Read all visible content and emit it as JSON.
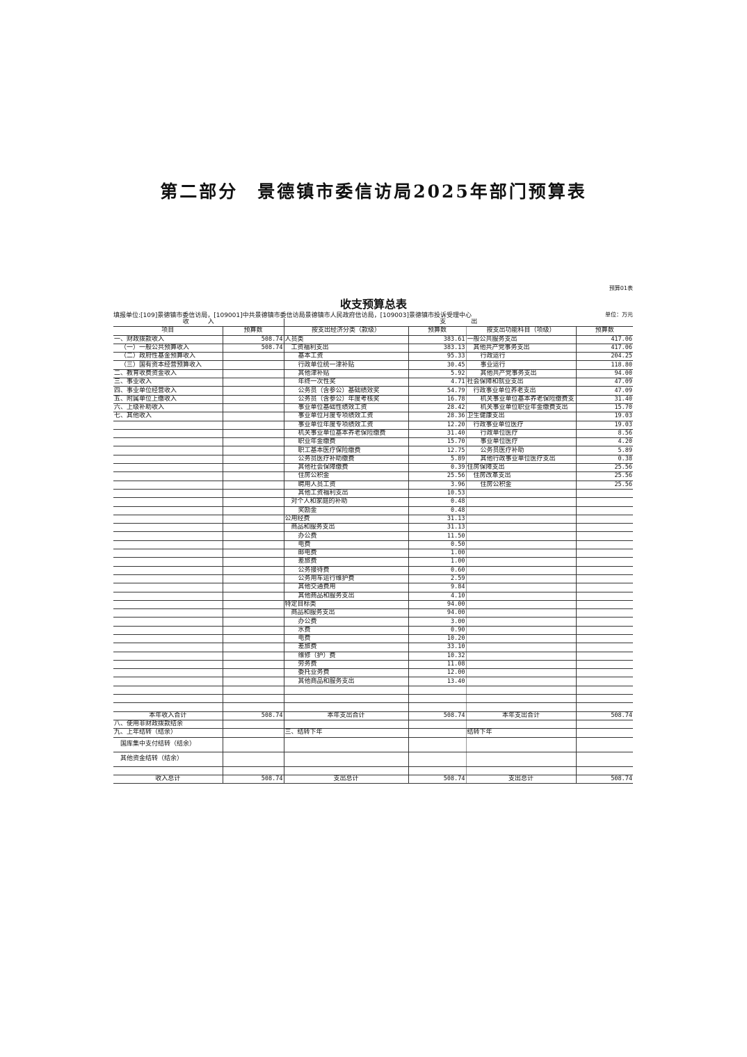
{
  "page_title": "第二部分　景德镇市委信访局2025年部门预算表",
  "form_no": "预算01表",
  "table_title": "收支预算总表",
  "filing_unit": "填报单位:[109]景德镇市委信访局，[109001]中共景德镇市委信访局景德镇市人民政府信访局，[109003]景德镇市投诉受理中心",
  "unit": "单位：万元",
  "header": {
    "income": "收　　　入",
    "expense": "支　　　　出",
    "cols": [
      "项目",
      "预算数",
      "按支出经济分类（款级）",
      "预算数",
      "按支出功能科目（项级）",
      "预算数"
    ]
  },
  "rows": [
    {
      "c": [
        "一、财政拨款收入",
        "508.74",
        "人员类",
        "383.61",
        "一般公共服务支出",
        "417.06"
      ],
      "lv": [
        0,
        0,
        0
      ]
    },
    {
      "c": [
        "（一）一般公共预算收入",
        "508.74",
        "工资福利支出",
        "383.13",
        "其他共产党事务支出",
        "417.06"
      ],
      "lv": [
        1,
        1,
        1
      ]
    },
    {
      "c": [
        "（二）政府性基金预算收入",
        "",
        "基本工资",
        "95.33",
        "行政运行",
        "204.25"
      ],
      "lv": [
        1,
        2,
        2
      ]
    },
    {
      "c": [
        "（三）国有资本经营预算收入",
        "",
        "行政单位统一津补贴",
        "30.45",
        "事业运行",
        "118.80"
      ],
      "lv": [
        1,
        2,
        2
      ]
    },
    {
      "c": [
        "二、教育收费资金收入",
        "",
        "其他津补贴",
        "5.92",
        "其他共产党事务支出",
        "94.00"
      ],
      "lv": [
        0,
        2,
        2
      ]
    },
    {
      "c": [
        "三、事业收入",
        "",
        "年终一次性奖",
        "4.71",
        "社会保障和就业支出",
        "47.09"
      ],
      "lv": [
        0,
        2,
        0
      ]
    },
    {
      "c": [
        "四、事业单位经营收入",
        "",
        "公务员（含参公）基础绩效奖",
        "54.79",
        "行政事业单位养老支出",
        "47.09"
      ],
      "lv": [
        0,
        2,
        1
      ]
    },
    {
      "c": [
        "五、附属单位上缴收入",
        "",
        "公务员（含参公）年度考核奖",
        "16.78",
        "机关事业单位基本养老保险缴费支",
        "31.40"
      ],
      "lv": [
        0,
        2,
        2
      ]
    },
    {
      "c": [
        "六、上级补助收入",
        "",
        "事业单位基础性绩效工资",
        "28.42",
        "机关事业单位职业年金缴费支出",
        "15.70"
      ],
      "lv": [
        0,
        2,
        2
      ]
    },
    {
      "c": [
        "七、其他收入",
        "",
        "事业单位月度专项绩效工资",
        "28.36",
        "卫生健康支出",
        "19.03"
      ],
      "lv": [
        0,
        2,
        0
      ]
    },
    {
      "c": [
        "",
        "",
        "事业单位年度专项绩效工资",
        "12.20",
        "行政事业单位医疗",
        "19.03"
      ],
      "lv": [
        0,
        2,
        1
      ]
    },
    {
      "c": [
        "",
        "",
        "机关事业单位基本养老保险缴费",
        "31.40",
        "行政单位医疗",
        "8.56"
      ],
      "lv": [
        0,
        2,
        2
      ]
    },
    {
      "c": [
        "",
        "",
        "职业年金缴费",
        "15.70",
        "事业单位医疗",
        "4.20"
      ],
      "lv": [
        0,
        2,
        2
      ]
    },
    {
      "c": [
        "",
        "",
        "职工基本医疗保险缴费",
        "12.75",
        "公务员医疗补助",
        "5.89"
      ],
      "lv": [
        0,
        2,
        2
      ]
    },
    {
      "c": [
        "",
        "",
        "公务员医疗补助缴费",
        "5.89",
        "其他行政事业单位医疗支出",
        "0.38"
      ],
      "lv": [
        0,
        2,
        2
      ]
    },
    {
      "c": [
        "",
        "",
        "其他社会保障缴费",
        "0.39",
        "住房保障支出",
        "25.56"
      ],
      "lv": [
        0,
        2,
        0
      ]
    },
    {
      "c": [
        "",
        "",
        "住房公积金",
        "25.56",
        "住房改革支出",
        "25.56"
      ],
      "lv": [
        0,
        2,
        1
      ]
    },
    {
      "c": [
        "",
        "",
        "聘用人员工资",
        "3.96",
        "住房公积金",
        "25.56"
      ],
      "lv": [
        0,
        2,
        2
      ]
    },
    {
      "c": [
        "",
        "",
        "其他工资福利支出",
        "10.53",
        "",
        ""
      ],
      "lv": [
        0,
        2,
        0
      ]
    },
    {
      "c": [
        "",
        "",
        "对个人和家庭的补助",
        "0.48",
        "",
        ""
      ],
      "lv": [
        0,
        1,
        0
      ]
    },
    {
      "c": [
        "",
        "",
        "奖励金",
        "0.48",
        "",
        ""
      ],
      "lv": [
        0,
        2,
        0
      ]
    },
    {
      "c": [
        "",
        "",
        "公用经费",
        "31.13",
        "",
        ""
      ],
      "lv": [
        0,
        0,
        0
      ]
    },
    {
      "c": [
        "",
        "",
        "商品和服务支出",
        "31.13",
        "",
        ""
      ],
      "lv": [
        0,
        1,
        0
      ]
    },
    {
      "c": [
        "",
        "",
        "办公费",
        "11.50",
        "",
        ""
      ],
      "lv": [
        0,
        2,
        0
      ]
    },
    {
      "c": [
        "",
        "",
        "电费",
        "0.50",
        "",
        ""
      ],
      "lv": [
        0,
        2,
        0
      ]
    },
    {
      "c": [
        "",
        "",
        "邮电费",
        "1.00",
        "",
        ""
      ],
      "lv": [
        0,
        2,
        0
      ]
    },
    {
      "c": [
        "",
        "",
        "差旅费",
        "1.00",
        "",
        ""
      ],
      "lv": [
        0,
        2,
        0
      ]
    },
    {
      "c": [
        "",
        "",
        "公务接待费",
        "0.60",
        "",
        ""
      ],
      "lv": [
        0,
        2,
        0
      ]
    },
    {
      "c": [
        "",
        "",
        "公务用车运行维护费",
        "2.59",
        "",
        ""
      ],
      "lv": [
        0,
        2,
        0
      ]
    },
    {
      "c": [
        "",
        "",
        "其他交通费用",
        "9.84",
        "",
        ""
      ],
      "lv": [
        0,
        2,
        0
      ]
    },
    {
      "c": [
        "",
        "",
        "其他商品和服务支出",
        "4.10",
        "",
        ""
      ],
      "lv": [
        0,
        2,
        0
      ]
    },
    {
      "c": [
        "",
        "",
        "特定目标类",
        "94.00",
        "",
        ""
      ],
      "lv": [
        0,
        0,
        0
      ]
    },
    {
      "c": [
        "",
        "",
        "商品和服务支出",
        "94.00",
        "",
        ""
      ],
      "lv": [
        0,
        1,
        0
      ]
    },
    {
      "c": [
        "",
        "",
        "办公费",
        "3.00",
        "",
        ""
      ],
      "lv": [
        0,
        2,
        0
      ]
    },
    {
      "c": [
        "",
        "",
        "水费",
        "0.90",
        "",
        ""
      ],
      "lv": [
        0,
        2,
        0
      ]
    },
    {
      "c": [
        "",
        "",
        "电费",
        "10.20",
        "",
        ""
      ],
      "lv": [
        0,
        2,
        0
      ]
    },
    {
      "c": [
        "",
        "",
        "差旅费",
        "33.10",
        "",
        ""
      ],
      "lv": [
        0,
        2,
        0
      ]
    },
    {
      "c": [
        "",
        "",
        "维修（护）费",
        "10.32",
        "",
        ""
      ],
      "lv": [
        0,
        2,
        0
      ]
    },
    {
      "c": [
        "",
        "",
        "劳务费",
        "11.08",
        "",
        ""
      ],
      "lv": [
        0,
        2,
        0
      ]
    },
    {
      "c": [
        "",
        "",
        "委托业务费",
        "12.00",
        "",
        ""
      ],
      "lv": [
        0,
        2,
        0
      ]
    },
    {
      "c": [
        "",
        "",
        "其他商品和服务支出",
        "13.40",
        "",
        ""
      ],
      "lv": [
        0,
        2,
        0
      ]
    },
    {
      "c": [
        "",
        "",
        "",
        "",
        "",
        ""
      ],
      "lv": [
        0,
        0,
        0
      ]
    },
    {
      "c": [
        "",
        "",
        "",
        "",
        "",
        ""
      ],
      "lv": [
        0,
        0,
        0
      ]
    },
    {
      "c": [
        "",
        "",
        "",
        "",
        "",
        ""
      ],
      "lv": [
        0,
        0,
        0
      ]
    }
  ],
  "footer": [
    {
      "c": [
        "本年收入合计",
        "508.74",
        "本年支出合计",
        "508.74",
        "本年支出合计",
        "508.74"
      ],
      "center": true
    },
    {
      "c": [
        "八、使用非财政拨款结余",
        "",
        "",
        "",
        "",
        ""
      ]
    },
    {
      "c": [
        "九、上年结转（结余）",
        "",
        "三、结转下年",
        "",
        "结转下年",
        ""
      ]
    },
    {
      "c": [
        "国库集中支付结转（结余）",
        "",
        "",
        "",
        "",
        ""
      ],
      "tall": true,
      "lv": 1
    },
    {
      "c": [
        "其他资金结转（结余）",
        "",
        "",
        "",
        "",
        ""
      ],
      "tall": true,
      "lv": 1
    },
    {
      "c": [
        "",
        "",
        "",
        "",
        "",
        ""
      ]
    },
    {
      "c": [
        "收入总计",
        "508.74",
        "支出总计",
        "508.74",
        "支出总计",
        "508.74"
      ],
      "center": true
    }
  ]
}
